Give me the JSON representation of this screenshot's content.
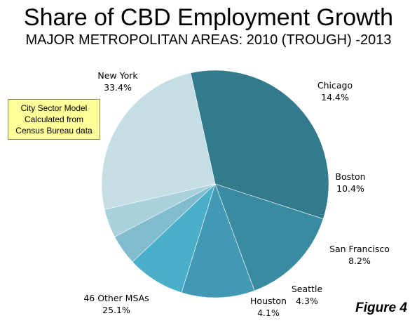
{
  "chart_data": {
    "type": "pie",
    "title": "Share of CBD Employment Growth",
    "subtitle": "MAJOR METROPOLITAN AREAS: 2010 (TROUGH) -2013",
    "slices": [
      {
        "name": "New York",
        "value": 33.4,
        "label": "33.4%",
        "color": "#337a8c"
      },
      {
        "name": "Chicago",
        "value": 14.4,
        "label": "14.4%",
        "color": "#3a8aa2"
      },
      {
        "name": "Boston",
        "value": 10.4,
        "label": "10.4%",
        "color": "#4199b4"
      },
      {
        "name": "San Francisco",
        "value": 8.2,
        "label": "8.2%",
        "color": "#4aafc8"
      },
      {
        "name": "Seattle",
        "value": 4.3,
        "label": "4.3%",
        "color": "#80bccd"
      },
      {
        "name": "Houston",
        "value": 4.1,
        "label": "4.1%",
        "color": "#a9d1dc"
      },
      {
        "name": "46 Other MSAs",
        "value": 25.1,
        "label": "25.1%",
        "color": "#c5dee6"
      }
    ],
    "legend": "none",
    "data_labels": "outside"
  },
  "note": {
    "lines": [
      "City Sector Model",
      "Calculated from",
      "Census Bureau data"
    ]
  },
  "figure_label": "Figure 4"
}
